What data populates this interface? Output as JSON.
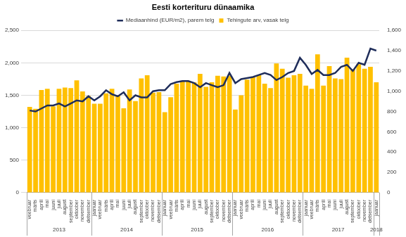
{
  "chart_data": {
    "type": "bar",
    "title": "Eesti korterituru dünaamika",
    "categories": [
      "veebruar",
      "märts",
      "aprill",
      "mai",
      "juuni",
      "juuli",
      "august",
      "september",
      "oktoober",
      "november",
      "detsember",
      "jaanuar",
      "veebruar",
      "märts",
      "aprill",
      "mai",
      "juuni",
      "juuli",
      "august",
      "september",
      "oktoober",
      "november",
      "detsember",
      "jaanuar",
      "veebruar",
      "märts",
      "aprill",
      "mai",
      "juuni",
      "juuli",
      "august",
      "september",
      "oktoober",
      "november",
      "detsember",
      "jaanuar",
      "veebruar",
      "märts",
      "aprill",
      "mai",
      "juuni",
      "juuli",
      "august",
      "september",
      "oktoober",
      "november",
      "detsember",
      "jaanuar",
      "veebruar",
      "märts",
      "aprill",
      "mai",
      "juuni",
      "juuli",
      "august",
      "september",
      "oktoober",
      "november",
      "detsember",
      "jaanuar"
    ],
    "groups": [
      {
        "label": "2013",
        "size": 11
      },
      {
        "label": "2014",
        "size": 12
      },
      {
        "label": "2015",
        "size": 12
      },
      {
        "label": "2016",
        "size": 12
      },
      {
        "label": "2017",
        "size": 12
      },
      {
        "label": "2018",
        "size": 1
      }
    ],
    "series": [
      {
        "name": "Tehingute arv, vasak telg",
        "type": "bar",
        "color": "#FFC000",
        "axis": "y",
        "values": [
          1320,
          1290,
          1580,
          1600,
          1330,
          1600,
          1620,
          1610,
          1730,
          1560,
          1490,
          1370,
          1370,
          1530,
          1600,
          1500,
          1300,
          1590,
          1410,
          1760,
          1810,
          1540,
          1550,
          1240,
          1470,
          1680,
          1720,
          1720,
          1700,
          1830,
          1630,
          1700,
          1800,
          1790,
          1800,
          1280,
          1500,
          1740,
          1780,
          1810,
          1680,
          1610,
          1990,
          1910,
          1770,
          1810,
          1830,
          1650,
          1600,
          2130,
          1650,
          1950,
          1760,
          1750,
          2080,
          1900,
          1980,
          1910,
          1940,
          1700
        ]
      },
      {
        "name": "Mediaanhind (EUR/m2), parem telg",
        "type": "line",
        "color": "#1F2D5A",
        "axis": "y2",
        "values": [
          810,
          800,
          830,
          860,
          860,
          880,
          850,
          880,
          910,
          900,
          950,
          910,
          950,
          1010,
          970,
          950,
          990,
          910,
          960,
          940,
          940,
          1000,
          1010,
          1010,
          1070,
          1090,
          1100,
          1100,
          1080,
          1040,
          1080,
          1060,
          1040,
          1060,
          1180,
          1080,
          1120,
          1130,
          1140,
          1160,
          1180,
          1160,
          1110,
          1140,
          1180,
          1200,
          1330,
          1260,
          1170,
          1210,
          1160,
          1160,
          1180,
          1240,
          1260,
          1200,
          1280,
          1260,
          1420,
          1400
        ]
      }
    ],
    "ylim": [
      0,
      2500
    ],
    "yticks": [
      0,
      500,
      1000,
      1500,
      2000,
      2500
    ],
    "y2lim": [
      0,
      1600
    ],
    "y2ticks": [
      0,
      200,
      400,
      600,
      800,
      1000,
      1200,
      1400,
      1600
    ],
    "grid": true,
    "legend": "top"
  }
}
